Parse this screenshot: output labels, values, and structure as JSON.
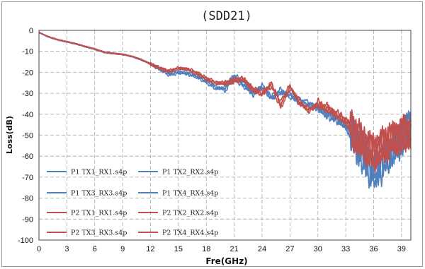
{
  "chart_data": {
    "type": "line",
    "title": "(SDD21)",
    "xlabel": "Fre(GHz)",
    "ylabel": "Loss(dB)",
    "xlim": [
      0,
      40
    ],
    "ylim": [
      -100,
      0
    ],
    "x_ticks": [
      0,
      3,
      6,
      9,
      12,
      15,
      18,
      21,
      24,
      27,
      30,
      33,
      36,
      39
    ],
    "x_tick_labels": [
      "0",
      "3",
      "6",
      "9",
      "12",
      "15",
      "18",
      "21",
      "24",
      "27",
      "30",
      "33",
      "36",
      "39"
    ],
    "y_ticks": [
      0,
      -10,
      -20,
      -30,
      -40,
      -50,
      -60,
      -70,
      -80,
      -90,
      -100
    ],
    "y_tick_labels": [
      "0",
      "-10",
      "-20",
      "-30",
      "-40",
      "-50",
      "-60",
      "-70",
      "-80",
      "-90",
      "-100"
    ],
    "grid": true,
    "legend_position": "lower-left",
    "colors": {
      "blue": "#4f81bd",
      "red": "#c0504d"
    },
    "x": [
      0,
      1,
      2,
      3,
      4,
      5,
      6,
      7,
      8,
      9,
      10,
      11,
      12,
      13,
      14,
      15,
      16,
      17,
      18,
      19,
      20,
      21,
      22,
      23,
      24,
      25,
      26,
      27,
      28,
      29,
      30,
      31,
      32,
      33,
      34,
      35,
      36,
      37,
      38,
      39,
      40
    ],
    "series": [
      {
        "name": "P1 TX1_RX1.s4p",
        "color": "#4f81bd",
        "values": [
          -1,
          -3,
          -4.5,
          -5.5,
          -6.5,
          -7.8,
          -9,
          -10.5,
          -11,
          -11.5,
          -12.5,
          -14,
          -16,
          -18.5,
          -21,
          -20,
          -20.5,
          -22,
          -24,
          -27,
          -28,
          -22,
          -26,
          -30,
          -27,
          -33,
          -29,
          -31,
          -34,
          -35,
          -37,
          -40,
          -42,
          -46,
          -52,
          -60,
          -68,
          -62,
          -56,
          -52,
          -45
        ]
      },
      {
        "name": "P1 TX2_RX2.s4p",
        "color": "#4f81bd",
        "values": [
          -1,
          -3,
          -4.4,
          -5.4,
          -6.4,
          -7.7,
          -8.8,
          -10.2,
          -10.8,
          -11.4,
          -12.3,
          -13.8,
          -15.8,
          -18.2,
          -20.5,
          -19.5,
          -21,
          -22.5,
          -25,
          -28,
          -27,
          -21,
          -25,
          -31,
          -26,
          -32,
          -30,
          -30,
          -35,
          -36,
          -36,
          -41,
          -43,
          -45,
          -55,
          -63,
          -70,
          -65,
          -58,
          -50,
          -46
        ]
      },
      {
        "name": "P1 TX3_RX3.s4p",
        "color": "#4f81bd",
        "values": [
          -1,
          -3.2,
          -4.6,
          -5.6,
          -6.6,
          -7.9,
          -9.1,
          -10.6,
          -11.2,
          -11.6,
          -12.6,
          -14.2,
          -16.2,
          -18.8,
          -21.5,
          -20.5,
          -20,
          -21.5,
          -23.5,
          -26.5,
          -29,
          -23,
          -27,
          -29,
          -28,
          -31,
          -28,
          -32,
          -33,
          -34,
          -38,
          -39,
          -41,
          -47,
          -50,
          -58,
          -66,
          -60,
          -57,
          -53,
          -44
        ]
      },
      {
        "name": "P1 TX4_RX4.s4p",
        "color": "#4f81bd",
        "values": [
          -1,
          -3.1,
          -4.5,
          -5.5,
          -6.5,
          -7.8,
          -9,
          -10.4,
          -11,
          -11.5,
          -12.4,
          -14,
          -16,
          -18.4,
          -21,
          -20.2,
          -20.8,
          -22.2,
          -24.5,
          -27.5,
          -27.5,
          -22.5,
          -25.5,
          -30.5,
          -26.5,
          -32.5,
          -29.5,
          -30.5,
          -34.5,
          -35.5,
          -36.5,
          -40.5,
          -42.5,
          -45.5,
          -53,
          -61,
          -67,
          -63,
          -55,
          -51,
          -45
        ]
      },
      {
        "name": "P2 TX1_RX1.s4p",
        "color": "#c0504d",
        "values": [
          -1,
          -3,
          -4.4,
          -5.4,
          -6.4,
          -7.7,
          -8.9,
          -10.4,
          -11,
          -11.4,
          -12.4,
          -13.9,
          -16,
          -18,
          -19.5,
          -18,
          -18.5,
          -20.5,
          -23,
          -25,
          -25,
          -24,
          -23,
          -28,
          -30,
          -25,
          -36,
          -27,
          -34,
          -38,
          -35,
          -37,
          -40,
          -42,
          -50,
          -55,
          -58,
          -55,
          -52,
          -50,
          -48
        ]
      },
      {
        "name": "P2 TX2_RX2.s4p",
        "color": "#c0504d",
        "values": [
          -1,
          -3.1,
          -4.5,
          -5.5,
          -6.5,
          -7.8,
          -9,
          -10.5,
          -11.1,
          -11.5,
          -12.5,
          -14,
          -16.2,
          -18.3,
          -19.8,
          -18.4,
          -18.2,
          -20,
          -22.5,
          -24.5,
          -26,
          -23,
          -24,
          -27,
          -31,
          -26,
          -34,
          -26,
          -35,
          -37,
          -36,
          -36,
          -41,
          -43,
          -48,
          -53,
          -60,
          -56,
          -53,
          -49,
          -47
        ]
      },
      {
        "name": "P2 TX3_RX3.s4p",
        "color": "#c0504d",
        "values": [
          -1,
          -2.9,
          -4.3,
          -5.3,
          -6.3,
          -7.6,
          -8.8,
          -10.3,
          -10.9,
          -11.3,
          -12.3,
          -13.8,
          -15.9,
          -17.8,
          -19.2,
          -17.8,
          -18.8,
          -21,
          -23.5,
          -25.5,
          -24.5,
          -25,
          -22.5,
          -29,
          -29,
          -27,
          -37,
          -28,
          -33,
          -39,
          -34,
          -38,
          -39,
          -44,
          -51,
          -56,
          -57,
          -54,
          -51,
          -51,
          -49
        ]
      },
      {
        "name": "P2 TX4_RX4.s4p",
        "color": "#c0504d",
        "values": [
          -1,
          -3,
          -4.4,
          -5.4,
          -6.4,
          -7.7,
          -8.9,
          -10.4,
          -11,
          -11.4,
          -12.4,
          -13.9,
          -16,
          -18.1,
          -19.6,
          -18.2,
          -18.6,
          -20.4,
          -22.8,
          -25.2,
          -25.5,
          -23.5,
          -23.5,
          -28.5,
          -30.5,
          -25.5,
          -35,
          -27,
          -34.5,
          -38.5,
          -35.5,
          -37.5,
          -40.5,
          -43,
          -49,
          -54,
          -59,
          -55,
          -52,
          -50,
          -48
        ]
      }
    ]
  }
}
